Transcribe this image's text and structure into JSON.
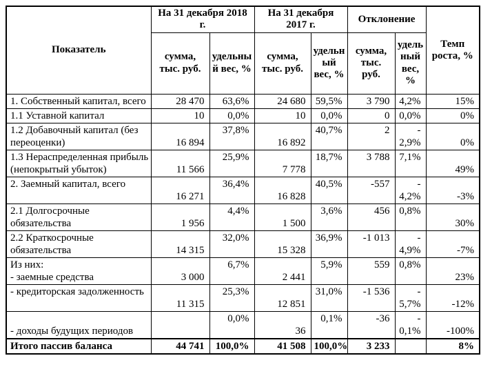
{
  "colors": {
    "text": "#000000",
    "border": "#000000",
    "background": "#ffffff"
  },
  "table": {
    "header": {
      "indicator": "Показатель",
      "groups": [
        {
          "label": "На 31 декабря 2018 г."
        },
        {
          "label": "На 31 декабря 2017 г."
        },
        {
          "label": "Отклонение"
        }
      ],
      "sub": {
        "sum": "сумма, тыс. руб.",
        "weight": "удельный вес, %"
      },
      "growth": "Темп роста, %"
    },
    "rows": [
      {
        "label": "1. Собственный капитал, всего",
        "sum2018": "28 470",
        "weight2018": "63,6%",
        "sum2017": "24 680",
        "weight2017": "59,5%",
        "dev_sum": "3 790",
        "dev_weight": "4,2%",
        "growth": "15%"
      },
      {
        "label": "1.1 Уставной капитал",
        "sum2018": "10",
        "weight2018": "0,0%",
        "sum2017": "10",
        "weight2017": "0,0%",
        "dev_sum": "0",
        "dev_weight": "0,0%",
        "growth": "0%"
      },
      {
        "label": "1.2 Добавочный капитал (без переоценки)",
        "sum2018": "16 894",
        "weight2018": "37,8%",
        "sum2017": "16 892",
        "weight2017": "40,7%",
        "dev_sum": "2",
        "dev_weight": "-\n2,9%",
        "growth": "0%"
      },
      {
        "label": "1.3 Нераспределенная прибыль (непокрытый убыток)",
        "sum2018": "11 566",
        "weight2018": "25,9%",
        "sum2017": "7 778",
        "weight2017": "18,7%",
        "dev_sum": "3 788",
        "dev_weight": "7,1%",
        "growth": "49%"
      },
      {
        "label": "2. Заемный капитал, всего",
        "sum2018": "16 271",
        "weight2018": "36,4%",
        "sum2017": "16 828",
        "weight2017": "40,5%",
        "dev_sum": "-557",
        "dev_weight": "-\n4,2%",
        "growth": "-3%"
      },
      {
        "label": "2.1 Долгосрочные обязательства",
        "sum2018": "1 956",
        "weight2018": "4,4%",
        "sum2017": "1 500",
        "weight2017": "3,6%",
        "dev_sum": "456",
        "dev_weight": "0,8%",
        "growth": "30%"
      },
      {
        "label": "2.2 Краткосрочные обязательства",
        "sum2018": "14 315",
        "weight2018": "32,0%",
        "sum2017": "15 328",
        "weight2017": "36,9%",
        "dev_sum": "-1 013",
        "dev_weight": "-\n4,9%",
        "growth": "-7%"
      },
      {
        "label": "Из них:\n- заемные средства",
        "sum2018": "3 000",
        "weight2018": "6,7%",
        "sum2017": "2 441",
        "weight2017": "5,9%",
        "dev_sum": "559",
        "dev_weight": "0,8%",
        "growth": "23%"
      },
      {
        "label": "- кредиторская задолженность",
        "sum2018": "11 315",
        "weight2018": "25,3%",
        "sum2017": "12 851",
        "weight2017": "31,0%",
        "dev_sum": "-1 536",
        "dev_weight": "-\n5,7%",
        "growth": "-12%"
      },
      {
        "label": "- доходы будущих периодов",
        "sum2018": "",
        "weight2018": "0,0%",
        "sum2017": "36",
        "weight2017": "0,1%",
        "dev_sum": "-36",
        "dev_weight": "-\n0,1%",
        "growth": "-100%"
      },
      {
        "label": "Итого пассив баланса",
        "total": true,
        "sum2018": "44 741",
        "weight2018": "100,0%",
        "sum2017": "41 508",
        "weight2017": "100,0%",
        "dev_sum": "3 233",
        "dev_weight": "",
        "growth": "8%"
      }
    ]
  }
}
